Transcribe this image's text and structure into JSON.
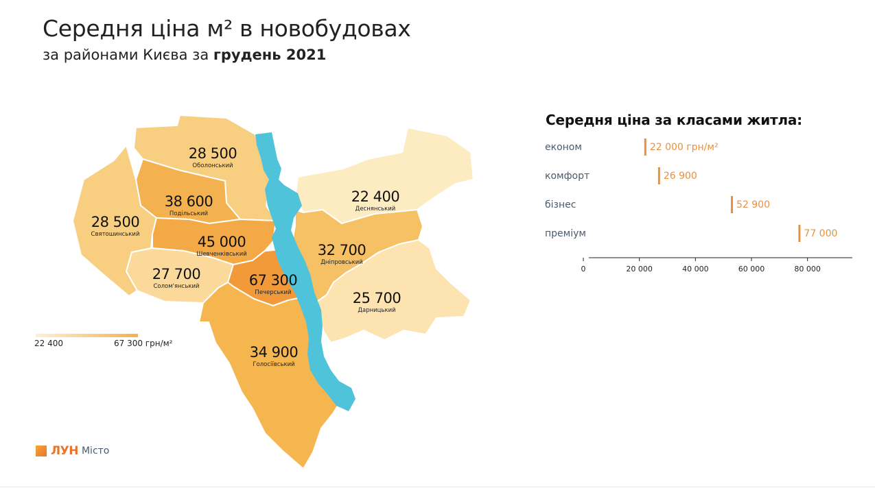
{
  "title": "Середня ціна м² в новобудовах",
  "subtitle_prefix": "за районами Києва за ",
  "subtitle_bold": "грудень 2021",
  "legend": {
    "min": "22 400",
    "max": "67 300 грн/м²"
  },
  "districts": [
    {
      "key": "obolon",
      "name": "Оболонський",
      "value": "28 500",
      "color": "#f8cf80"
    },
    {
      "key": "podil",
      "name": "Подільський",
      "value": "38 600",
      "color": "#f4b14f"
    },
    {
      "key": "sviatoshyn",
      "name": "Святошинський",
      "value": "28 500",
      "color": "#f8cf80"
    },
    {
      "key": "shevchenko",
      "name": "Шевченківський",
      "value": "45 000",
      "color": "#f3a946"
    },
    {
      "key": "solomian",
      "name": "Солом'янський",
      "value": "27 700",
      "color": "#fad99b"
    },
    {
      "key": "pechersk",
      "name": "Печерський",
      "value": "67 300",
      "color": "#f2993a"
    },
    {
      "key": "holosiiv",
      "name": "Голосіївський",
      "value": "34 900",
      "color": "#f5b64f"
    },
    {
      "key": "desna",
      "name": "Деснянський",
      "value": "22 400",
      "color": "#fdebc2"
    },
    {
      "key": "dnipro",
      "name": "Дніпровський",
      "value": "32 700",
      "color": "#f6c064"
    },
    {
      "key": "darnytsia",
      "name": "Дарницький",
      "value": "25 700",
      "color": "#fce3b0"
    }
  ],
  "river_color": "#4fc3da",
  "chart_data": {
    "type": "bar",
    "title": "Середня ціна за класами житла:",
    "categories": [
      "економ",
      "комфорт",
      "бізнес",
      "преміум"
    ],
    "values": [
      22000,
      26900,
      52900,
      77000
    ],
    "value_labels": [
      "22 000 грн/м²",
      "26 900",
      "52 900",
      "77 000"
    ],
    "xlim": [
      0,
      96000
    ],
    "x_ticks": [
      0,
      20000,
      40000,
      60000,
      80000
    ],
    "x_tick_labels": [
      "0",
      "20 000",
      "40 000",
      "60 000",
      "80 000"
    ],
    "bar_color": "#e8913d"
  },
  "logo": {
    "word": "ЛУН",
    "sub": "Місто"
  }
}
